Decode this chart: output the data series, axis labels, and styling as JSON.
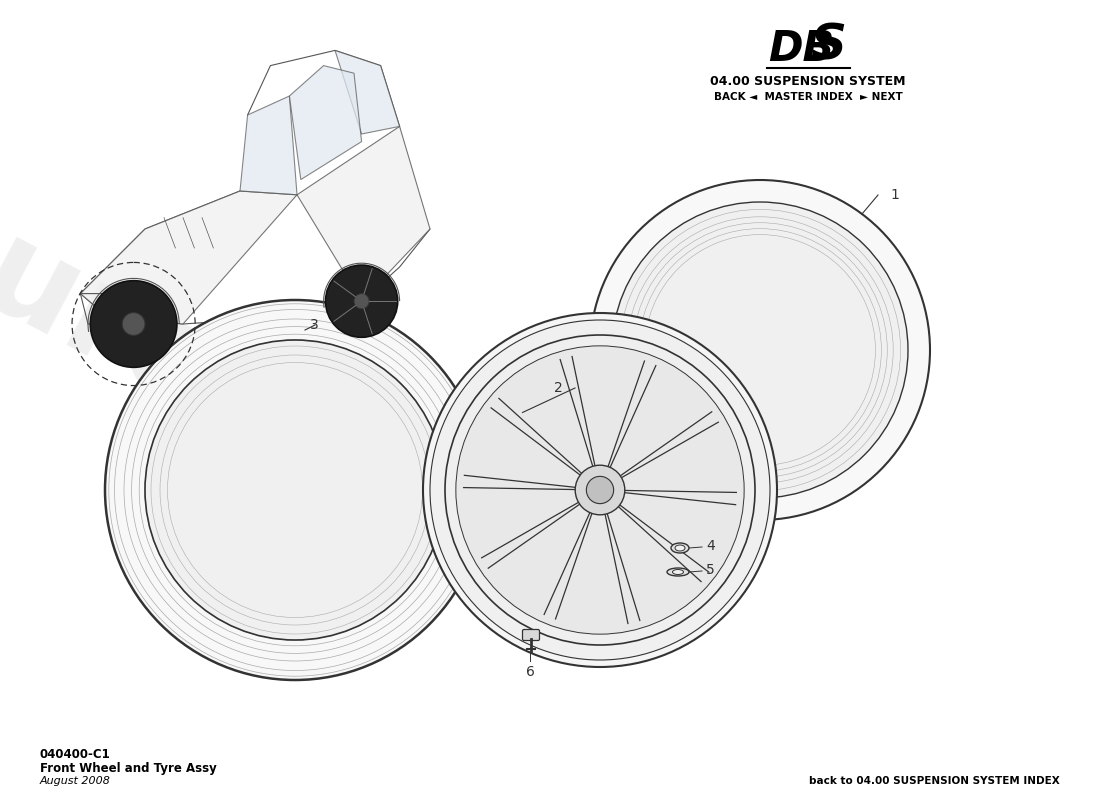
{
  "bg_color": "#ffffff",
  "title_model": "DBS",
  "title_system": "04.00 SUSPENSION SYSTEM",
  "title_nav": "BACK ◄  MASTER INDEX  ► NEXT",
  "part_code": "040400-C1",
  "part_name": "Front Wheel and Tyre Assy",
  "part_date": "August 2008",
  "footer_right": "back to 04.00 SUSPENSION SYSTEM INDEX",
  "line_color": "#333333",
  "medium_gray": "#888888",
  "light_line": "#aaaaaa",
  "watermark_color": "#cccccc",
  "yellow_text_color": "#d4c84a"
}
